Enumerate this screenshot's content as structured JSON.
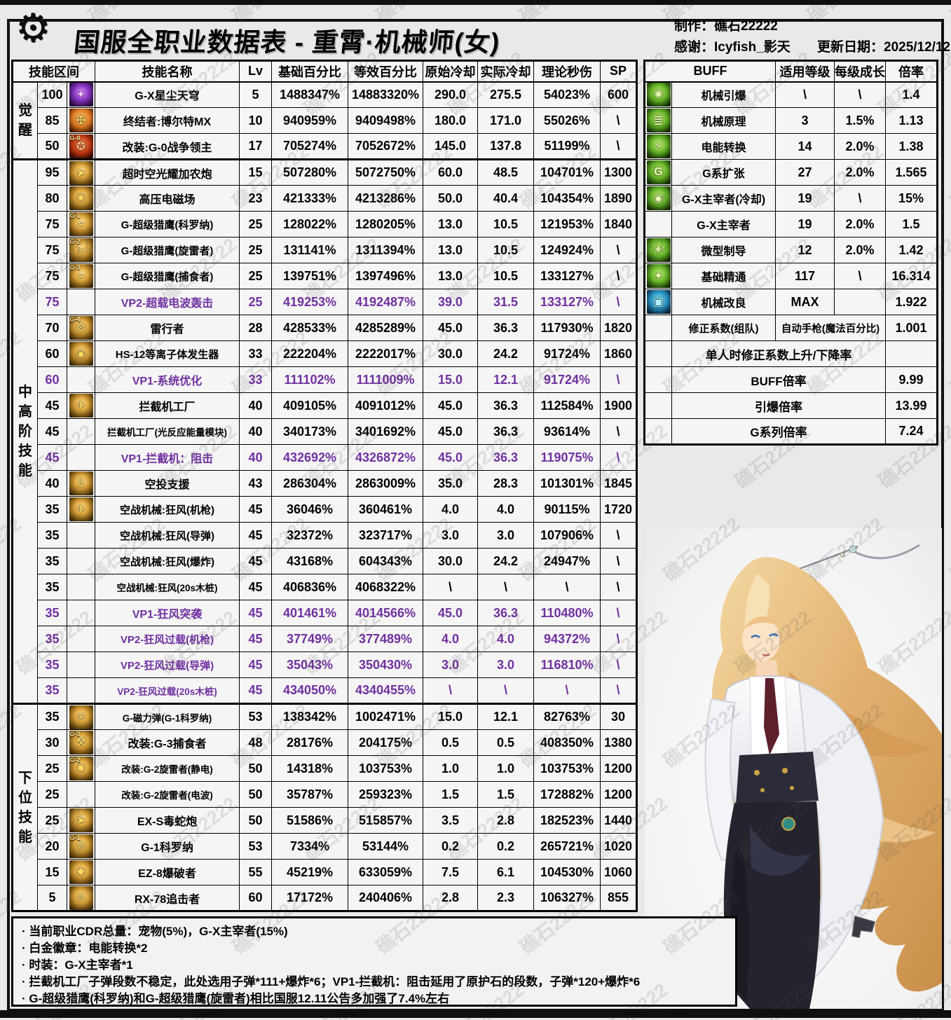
{
  "page": {
    "title": "国服全职业数据表 - 重霄·机械师(女)",
    "watermark": "礁石22222",
    "credits": {
      "maker": "制作：礁石22222",
      "thanks": "感谢：Icyfish_影天",
      "update": "更新日期：2025/12/12"
    },
    "colors": {
      "vp_purple": "#7030A0",
      "page_bg": "#e9e9e9",
      "border": "#000000"
    }
  },
  "skill_table": {
    "headers": [
      "技能区间",
      "技能名称",
      "Lv",
      "基础百分比",
      "等效百分比",
      "原始冷却",
      "实际冷却",
      "理论秒伤",
      "SP"
    ],
    "groups": [
      {
        "label": "觉醒",
        "rows": [
          {
            "range": "100",
            "name": "G-X星尘天穹",
            "lv": "5",
            "base": "1488347%",
            "equiv": "14883320%",
            "cd": "290.0",
            "rcd": "275.5",
            "dps": "54023%",
            "sp": "600",
            "vp": false,
            "icon": {
              "name": "gx-stardust-sky-icon",
              "palette": "purple",
              "glyph": "✦",
              "label": ""
            }
          },
          {
            "range": "85",
            "name": "终结者:博尔特MX",
            "lv": "10",
            "base": "940959%",
            "equiv": "9409498%",
            "cd": "180.0",
            "rcd": "171.0",
            "dps": "55026%",
            "sp": "\\",
            "vp": false,
            "icon": {
              "name": "terminator-volt-mx-icon",
              "palette": "orange",
              "glyph": "✠",
              "label": ""
            }
          },
          {
            "range": "50",
            "name": "改装:G-0战争领主",
            "lv": "17",
            "base": "705274%",
            "equiv": "7052672%",
            "cd": "145.0",
            "rcd": "137.8",
            "dps": "51199%",
            "sp": "\\",
            "vp": false,
            "icon": {
              "name": "g0-warlord-icon",
              "palette": "red",
              "glyph": "✪",
              "label": "G-0"
            }
          }
        ]
      },
      {
        "label": "中高阶技能",
        "rows": [
          {
            "range": "95",
            "name": "超时空光耀加农炮",
            "lv": "15",
            "base": "507280%",
            "equiv": "5072750%",
            "cd": "60.0",
            "rcd": "48.5",
            "dps": "104701%",
            "sp": "1300",
            "vp": false,
            "icon": {
              "name": "chrono-cannon-icon",
              "palette": "gold",
              "glyph": "➤",
              "label": ""
            }
          },
          {
            "range": "80",
            "name": "高压电磁场",
            "lv": "23",
            "base": "421333%",
            "equiv": "4213286%",
            "cd": "50.0",
            "rcd": "40.4",
            "dps": "104354%",
            "sp": "1890",
            "vp": false,
            "icon": {
              "name": "em-field-icon",
              "palette": "gold",
              "glyph": "✺",
              "label": ""
            }
          },
          {
            "range": "75",
            "name": "G-超级猎鹰(科罗纳)",
            "lv": "25",
            "base": "128022%",
            "equiv": "1280205%",
            "cd": "13.0",
            "rcd": "10.5",
            "dps": "121953%",
            "sp": "1840",
            "vp": false,
            "icon": {
              "name": "super-hawk-corona-icon",
              "palette": "gold",
              "glyph": "➢",
              "label": "G-1"
            }
          },
          {
            "range": "75",
            "name": "G-超级猎鹰(旋雷者)",
            "lv": "25",
            "base": "131141%",
            "equiv": "1311394%",
            "cd": "13.0",
            "rcd": "10.5",
            "dps": "124924%",
            "sp": "\\",
            "vp": false,
            "icon": {
              "name": "super-hawk-spiral-icon",
              "palette": "gold",
              "glyph": "➢",
              "label": "G-2"
            }
          },
          {
            "range": "75",
            "name": "G-超级猎鹰(捕食者)",
            "lv": "25",
            "base": "139751%",
            "equiv": "1397496%",
            "cd": "13.0",
            "rcd": "10.5",
            "dps": "133127%",
            "sp": "\\",
            "vp": false,
            "icon": {
              "name": "super-hawk-predator-icon",
              "palette": "gold",
              "glyph": "➢",
              "label": "G-3"
            }
          },
          {
            "range": "75",
            "name": "VP2-超载电波轰击",
            "lv": "25",
            "base": "419253%",
            "equiv": "4192487%",
            "cd": "39.0",
            "rcd": "31.5",
            "dps": "133127%",
            "sp": "\\",
            "vp": true,
            "icon": null
          },
          {
            "range": "70",
            "name": "雷行者",
            "lv": "28",
            "base": "428533%",
            "equiv": "4285289%",
            "cd": "45.0",
            "rcd": "36.3",
            "dps": "117930%",
            "sp": "1820",
            "vp": false,
            "icon": {
              "name": "thunder-walker-icon",
              "palette": "gold",
              "glyph": "⚙",
              "label": "G-4"
            }
          },
          {
            "range": "60",
            "name": "HS-12等离子体发生器",
            "lv": "33",
            "base": "222204%",
            "equiv": "2222017%",
            "cd": "30.0",
            "rcd": "24.2",
            "dps": "91724%",
            "sp": "1860",
            "vp": false,
            "icon": {
              "name": "hs12-plasma-icon",
              "palette": "gold",
              "glyph": "◉",
              "label": ""
            }
          },
          {
            "range": "60",
            "name": "VP1-系统优化",
            "lv": "33",
            "base": "111102%",
            "equiv": "1111009%",
            "cd": "15.0",
            "rcd": "12.1",
            "dps": "91724%",
            "sp": "\\",
            "vp": true,
            "icon": null
          },
          {
            "range": "45",
            "name": "拦截机工厂",
            "lv": "40",
            "base": "409105%",
            "equiv": "4091012%",
            "cd": "45.0",
            "rcd": "36.3",
            "dps": "112584%",
            "sp": "1900",
            "vp": false,
            "icon": {
              "name": "interceptor-factory-icon",
              "palette": "gold",
              "glyph": "✈",
              "label": ""
            }
          },
          {
            "range": "45",
            "name": "拦截机工厂(光反应能量模块)",
            "lv": "40",
            "base": "340173%",
            "equiv": "3401692%",
            "cd": "45.0",
            "rcd": "36.3",
            "dps": "93614%",
            "sp": "\\",
            "vp": false,
            "icon": null
          },
          {
            "range": "45",
            "name": "VP1-拦截机：阻击",
            "lv": "40",
            "base": "432692%",
            "equiv": "4326872%",
            "cd": "45.0",
            "rcd": "36.3",
            "dps": "119075%",
            "sp": "\\",
            "vp": true,
            "icon": null
          },
          {
            "range": "40",
            "name": "空投支援",
            "lv": "43",
            "base": "286304%",
            "equiv": "2863009%",
            "cd": "35.0",
            "rcd": "28.3",
            "dps": "101301%",
            "sp": "1845",
            "vp": false,
            "icon": {
              "name": "airdrop-support-icon",
              "palette": "gold",
              "glyph": "⇓",
              "label": ""
            }
          },
          {
            "range": "35",
            "name": "空战机械:狂风(机枪)",
            "lv": "45",
            "base": "36046%",
            "equiv": "360461%",
            "cd": "4.0",
            "rcd": "4.0",
            "dps": "90115%",
            "sp": "1720",
            "vp": false,
            "icon": {
              "name": "air-mech-gale-icon",
              "palette": "gold",
              "glyph": "✈",
              "label": ""
            }
          },
          {
            "range": "35",
            "name": "空战机械:狂风(导弹)",
            "lv": "45",
            "base": "32372%",
            "equiv": "323717%",
            "cd": "3.0",
            "rcd": "3.0",
            "dps": "107906%",
            "sp": "\\",
            "vp": false,
            "icon": null
          },
          {
            "range": "35",
            "name": "空战机械:狂风(爆炸)",
            "lv": "45",
            "base": "43168%",
            "equiv": "604343%",
            "cd": "30.0",
            "rcd": "24.2",
            "dps": "24947%",
            "sp": "\\",
            "vp": false,
            "icon": null
          },
          {
            "range": "35",
            "name": "空战机械:狂风(20s木桩)",
            "lv": "45",
            "base": "406836%",
            "equiv": "4068322%",
            "cd": "\\",
            "rcd": "\\",
            "dps": "\\",
            "sp": "\\",
            "vp": false,
            "icon": null
          },
          {
            "range": "35",
            "name": "VP1-狂风突袭",
            "lv": "45",
            "base": "401461%",
            "equiv": "4014566%",
            "cd": "45.0",
            "rcd": "36.3",
            "dps": "110480%",
            "sp": "\\",
            "vp": true,
            "icon": null
          },
          {
            "range": "35",
            "name": "VP2-狂风过载(机枪)",
            "lv": "45",
            "base": "37749%",
            "equiv": "377489%",
            "cd": "4.0",
            "rcd": "4.0",
            "dps": "94372%",
            "sp": "\\",
            "vp": true,
            "icon": null
          },
          {
            "range": "35",
            "name": "VP2-狂风过载(导弹)",
            "lv": "45",
            "base": "35043%",
            "equiv": "350430%",
            "cd": "3.0",
            "rcd": "3.0",
            "dps": "116810%",
            "sp": "\\",
            "vp": true,
            "icon": null
          },
          {
            "range": "35",
            "name": "VP2-狂风过载(20s木桩)",
            "lv": "45",
            "base": "434050%",
            "equiv": "4340455%",
            "cd": "\\",
            "rcd": "\\",
            "dps": "\\",
            "sp": "\\",
            "vp": true,
            "icon": null
          }
        ]
      },
      {
        "label": "下位技能",
        "rows": [
          {
            "range": "35",
            "name": "G-磁力弹(G-1科罗纳)",
            "lv": "53",
            "base": "138342%",
            "equiv": "1002471%",
            "cd": "15.0",
            "rcd": "12.1",
            "dps": "82763%",
            "sp": "30",
            "vp": false,
            "icon": {
              "name": "magnetic-bomb-icon",
              "palette": "gold",
              "glyph": "✳",
              "label": ""
            }
          },
          {
            "range": "30",
            "name": "改装:G-3捕食者",
            "lv": "48",
            "base": "28176%",
            "equiv": "204175%",
            "cd": "0.5",
            "rcd": "0.5",
            "dps": "408350%",
            "sp": "1380",
            "vp": false,
            "icon": {
              "name": "g3-predator-mod-icon",
              "palette": "gold",
              "glyph": "⚒",
              "label": "G-3"
            }
          },
          {
            "range": "25",
            "name": "改装:G-2旋雷者(静电)",
            "lv": "50",
            "base": "14318%",
            "equiv": "103753%",
            "cd": "1.0",
            "rcd": "1.0",
            "dps": "103753%",
            "sp": "1200",
            "vp": false,
            "icon": {
              "name": "g2-static-mod-icon",
              "palette": "gold",
              "glyph": "✹",
              "label": "G-2"
            }
          },
          {
            "range": "25",
            "name": "改装:G-2旋雷者(电波)",
            "lv": "50",
            "base": "35787%",
            "equiv": "259323%",
            "cd": "1.5",
            "rcd": "1.5",
            "dps": "172882%",
            "sp": "1200",
            "vp": false,
            "icon": null
          },
          {
            "range": "25",
            "name": "EX-S毒蛇炮",
            "lv": "50",
            "base": "51586%",
            "equiv": "515857%",
            "cd": "3.5",
            "rcd": "2.8",
            "dps": "182523%",
            "sp": "1440",
            "vp": false,
            "icon": {
              "name": "exs-viper-icon",
              "palette": "gold",
              "glyph": "➤",
              "label": ""
            }
          },
          {
            "range": "20",
            "name": "G-1科罗纳",
            "lv": "53",
            "base": "7334%",
            "equiv": "53144%",
            "cd": "0.2",
            "rcd": "0.2",
            "dps": "265721%",
            "sp": "1020",
            "vp": false,
            "icon": {
              "name": "g1-corona-icon",
              "palette": "gold",
              "glyph": "◎",
              "label": "G-1"
            }
          },
          {
            "range": "15",
            "name": "EZ-8爆破者",
            "lv": "55",
            "base": "45219%",
            "equiv": "633059%",
            "cd": "7.5",
            "rcd": "6.1",
            "dps": "104530%",
            "sp": "1060",
            "vp": false,
            "icon": {
              "name": "ez8-blaster-icon",
              "palette": "gold",
              "glyph": "✸",
              "label": ""
            }
          },
          {
            "range": "5",
            "name": "RX-78追击者",
            "lv": "60",
            "base": "17172%",
            "equiv": "240406%",
            "cd": "2.8",
            "rcd": "2.3",
            "dps": "106327%",
            "sp": "855",
            "vp": false,
            "icon": {
              "name": "rx78-chaser-icon",
              "palette": "gold",
              "glyph": "✵",
              "label": ""
            }
          }
        ]
      }
    ]
  },
  "buff_table": {
    "headers": [
      "BUFF",
      "适用等级",
      "每级成长",
      "倍率"
    ],
    "rows": [
      {
        "type": "normal",
        "name": "机械引爆",
        "level": "\\",
        "growth": "\\",
        "rate": "1.4",
        "icon": {
          "name": "mech-detonate-icon",
          "palette": "green",
          "glyph": "✺"
        }
      },
      {
        "type": "normal",
        "name": "机械原理",
        "level": "3",
        "growth": "1.5%",
        "rate": "1.13",
        "icon": {
          "name": "mech-principle-icon",
          "palette": "green",
          "glyph": "≣"
        }
      },
      {
        "type": "normal",
        "name": "电能转换",
        "level": "14",
        "growth": "2.0%",
        "rate": "1.38",
        "icon": {
          "name": "energy-convert-icon",
          "palette": "green",
          "glyph": "⚡"
        }
      },
      {
        "type": "normal",
        "name": "G系扩张",
        "level": "27",
        "growth": "2.0%",
        "rate": "1.565",
        "icon": {
          "name": "g-expansion-icon",
          "palette": "green",
          "glyph": "G"
        }
      },
      {
        "type": "normal",
        "name": "G-X主宰者(冷却)",
        "level": "19",
        "growth": "\\",
        "rate": "15%",
        "icon": {
          "name": "gx-overlord-cooldown-icon",
          "palette": "green",
          "glyph": "◉"
        }
      },
      {
        "type": "normal",
        "name": "G-X主宰者",
        "level": "19",
        "growth": "2.0%",
        "rate": "1.5",
        "icon": null
      },
      {
        "type": "normal",
        "name": "微型制导",
        "level": "12",
        "growth": "2.0%",
        "rate": "1.42",
        "icon": {
          "name": "micro-guidance-icon",
          "palette": "green",
          "glyph": "⌖"
        }
      },
      {
        "type": "normal",
        "name": "基础精通",
        "level": "117",
        "growth": "\\",
        "rate": "16.314",
        "icon": {
          "name": "basic-mastery-icon",
          "palette": "green",
          "glyph": "✦"
        }
      },
      {
        "type": "normal",
        "name": "机械改良",
        "level": "MAX",
        "growth": "",
        "rate": "1.922",
        "icon": {
          "name": "mech-improve-icon",
          "palette": "blue",
          "glyph": "▣"
        }
      },
      {
        "type": "mid",
        "name": "修正系数(组队)",
        "mid": "自动手枪(魔法百分比)",
        "rate": "1.001",
        "icon": null
      },
      {
        "type": "span",
        "name": "单人时修正系数上升/下降率",
        "rate": "",
        "icon": null
      },
      {
        "type": "span",
        "name": "BUFF倍率",
        "rate": "9.99",
        "icon": null
      },
      {
        "type": "span",
        "name": "引爆倍率",
        "rate": "13.99",
        "icon": null
      },
      {
        "type": "span",
        "name": "G系列倍率",
        "rate": "7.24",
        "icon": null
      }
    ]
  },
  "notes": [
    "· 当前职业CDR总量：宠物(5%)，G-X主宰者(15%)",
    "· 白金徽章：电能转换*2",
    "· 时装：G-X主宰者*1",
    "· 拦截机工厂子弹段数不稳定，此处选用子弹*111+爆炸*6；VP1-拦截机：阻击延用了原护石的段数，子弹*120+爆炸*6",
    "· G-超级猎鹰(科罗纳)和G-超级猎鹰(旋雷者)相比国服12.11公告多加强了7.4%左右"
  ]
}
